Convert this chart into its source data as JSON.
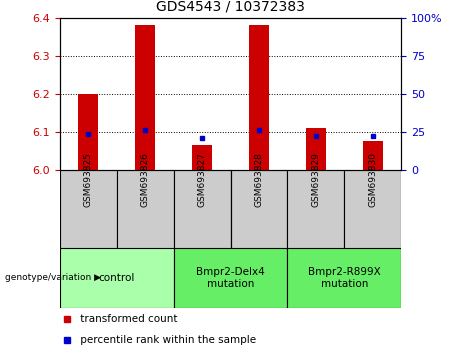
{
  "title": "GDS4543 / 10372383",
  "samples": [
    "GSM693825",
    "GSM693826",
    "GSM693827",
    "GSM693828",
    "GSM693829",
    "GSM693830"
  ],
  "red_values": [
    6.2,
    6.38,
    6.065,
    6.38,
    6.11,
    6.075
  ],
  "blue_values": [
    6.095,
    6.105,
    6.085,
    6.105,
    6.09,
    6.09
  ],
  "ylim": [
    6.0,
    6.4
  ],
  "yticks_left": [
    6.0,
    6.1,
    6.2,
    6.3,
    6.4
  ],
  "yticks_right": [
    0,
    25,
    50,
    75,
    100
  ],
  "groups": [
    {
      "label": "control",
      "span": [
        0,
        2
      ],
      "color": "#aaffaa"
    },
    {
      "label": "Bmpr2-Delx4\nmutation",
      "span": [
        2,
        4
      ],
      "color": "#66ee66"
    },
    {
      "label": "Bmpr2-R899X\nmutation",
      "span": [
        4,
        6
      ],
      "color": "#66ee66"
    }
  ],
  "legend_items": [
    {
      "label": " transformed count",
      "color": "#cc0000"
    },
    {
      "label": " percentile rank within the sample",
      "color": "#0000cc"
    }
  ],
  "bar_width": 0.35,
  "bar_color": "#cc0000",
  "dot_color": "#0000cc",
  "left_tick_color": "#cc0000",
  "right_tick_color": "#0000cc",
  "background_color": "#ffffff",
  "plot_bg_color": "#ffffff",
  "sample_cell_color": "#cccccc",
  "dotted_line_color": "#000000"
}
